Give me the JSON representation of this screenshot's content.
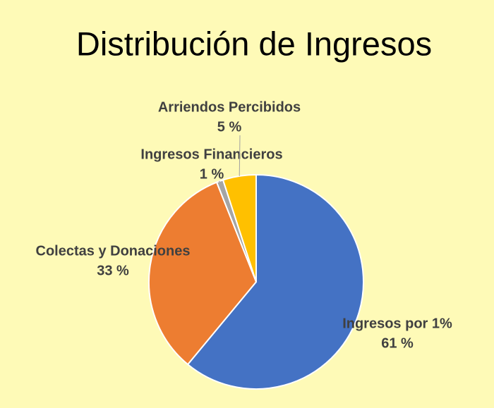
{
  "chart_data": {
    "type": "pie",
    "title": "Distribución de Ingresos",
    "categories": [
      "Ingresos por 1%",
      "Colectas y Donaciones",
      "Ingresos Financieros",
      "Arriendos Percibidos"
    ],
    "values": [
      61,
      33,
      1,
      5
    ],
    "value_labels": [
      "61 %",
      "33 %",
      "1 %",
      "5 %"
    ],
    "colors": [
      "#4472c4",
      "#ed7d31",
      "#a5a5a5",
      "#ffc000"
    ]
  }
}
